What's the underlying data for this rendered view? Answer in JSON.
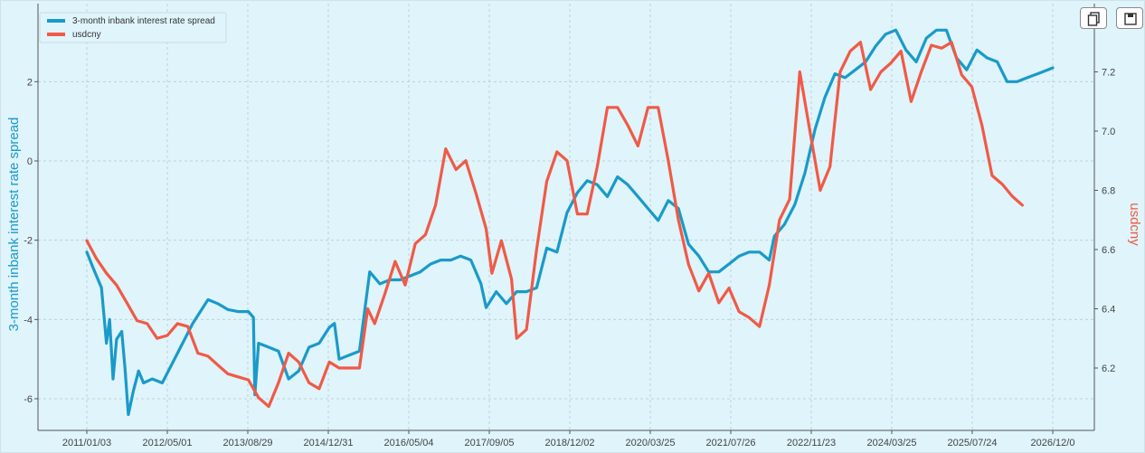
{
  "toolbar": {
    "copy_icon": "copy-icon",
    "save_icon": "save-icon"
  },
  "chart_data": {
    "type": "line",
    "x_tick_labels": [
      "2011/01/03",
      "2012/05/01",
      "2013/08/29",
      "2014/12/31",
      "2016/05/04",
      "2017/09/05",
      "2018/12/02",
      "2020/03/25",
      "2021/07/26",
      "2022/11/23",
      "2024/03/25",
      "2025/07/24",
      "2026/12/0"
    ],
    "left_axis": {
      "label": "3-month inbank interest rate spread",
      "color": "#1a9ac9",
      "ylim": [
        -7.0,
        4.0
      ],
      "ticks": [
        2,
        0,
        -2,
        -4,
        -6
      ],
      "tick_labels": [
        "2",
        "0",
        "-2",
        "-4",
        "-6"
      ]
    },
    "right_axis": {
      "label": "usdcny",
      "color": "#f05a46",
      "ylim": [
        6.0,
        7.4
      ],
      "ticks": [
        7.2,
        7.0,
        6.8,
        6.6,
        6.4,
        6.2
      ],
      "tick_labels": [
        "7.2",
        "7.0",
        "6.8",
        "6.6",
        "6.4",
        "6.2"
      ]
    },
    "grid": true,
    "legend_position": "top-left",
    "series": [
      {
        "name": "3-month inbank interest rate spread",
        "axis": "left",
        "color": "#1a9ac9",
        "points": [
          [
            "2011/01/03",
            -2.3
          ],
          [
            "2011/02/10",
            -2.7
          ],
          [
            "2011/04/01",
            -3.2
          ],
          [
            "2011/05/01",
            -4.6
          ],
          [
            "2011/05/20",
            -4.0
          ],
          [
            "2011/06/10",
            -5.5
          ],
          [
            "2011/07/01",
            -4.5
          ],
          [
            "2011/08/01",
            -4.3
          ],
          [
            "2011/08/20",
            -5.2
          ],
          [
            "2011/09/10",
            -6.4
          ],
          [
            "2011/10/10",
            -5.8
          ],
          [
            "2011/11/10",
            -5.3
          ],
          [
            "2011/12/10",
            -5.6
          ],
          [
            "2012/02/01",
            -5.5
          ],
          [
            "2012/04/01",
            -5.6
          ],
          [
            "2012/06/01",
            -5.1
          ],
          [
            "2012/08/01",
            -4.6
          ],
          [
            "2012/10/01",
            -4.1
          ],
          [
            "2012/12/01",
            -3.7
          ],
          [
            "2013/01/01",
            -3.5
          ],
          [
            "2013/03/01",
            -3.6
          ],
          [
            "2013/05/01",
            -3.75
          ],
          [
            "2013/07/01",
            -3.8
          ],
          [
            "2013/09/01",
            -3.8
          ],
          [
            "2013/10/01",
            -3.95
          ],
          [
            "2013/10/10",
            -5.9
          ],
          [
            "2013/11/01",
            -4.6
          ],
          [
            "2014/01/01",
            -4.7
          ],
          [
            "2014/03/01",
            -4.8
          ],
          [
            "2014/05/01",
            -5.5
          ],
          [
            "2014/07/01",
            -5.3
          ],
          [
            "2014/09/01",
            -4.7
          ],
          [
            "2014/11/01",
            -4.6
          ],
          [
            "2015/01/01",
            -4.2
          ],
          [
            "2015/02/01",
            -4.1
          ],
          [
            "2015/03/01",
            -5.0
          ],
          [
            "2015/05/01",
            -4.9
          ],
          [
            "2015/07/01",
            -4.8
          ],
          [
            "2015/09/01",
            -2.8
          ],
          [
            "2015/11/01",
            -3.1
          ],
          [
            "2016/01/01",
            -3.0
          ],
          [
            "2016/03/01",
            -3.0
          ],
          [
            "2016/05/01",
            -2.9
          ],
          [
            "2016/07/01",
            -2.8
          ],
          [
            "2016/09/01",
            -2.6
          ],
          [
            "2016/11/01",
            -2.5
          ],
          [
            "2017/01/01",
            -2.5
          ],
          [
            "2017/03/01",
            -2.4
          ],
          [
            "2017/05/01",
            -2.5
          ],
          [
            "2017/07/01",
            -3.1
          ],
          [
            "2017/08/01",
            -3.7
          ],
          [
            "2017/10/01",
            -3.3
          ],
          [
            "2017/12/01",
            -3.6
          ],
          [
            "2018/02/01",
            -3.3
          ],
          [
            "2018/04/01",
            -3.3
          ],
          [
            "2018/06/01",
            -3.2
          ],
          [
            "2018/08/01",
            -2.2
          ],
          [
            "2018/10/01",
            -2.3
          ],
          [
            "2018/12/01",
            -1.3
          ],
          [
            "2019/02/01",
            -0.8
          ],
          [
            "2019/04/01",
            -0.5
          ],
          [
            "2019/06/01",
            -0.6
          ],
          [
            "2019/08/01",
            -0.9
          ],
          [
            "2019/10/01",
            -0.4
          ],
          [
            "2019/12/01",
            -0.6
          ],
          [
            "2020/02/01",
            -0.9
          ],
          [
            "2020/04/01",
            -1.2
          ],
          [
            "2020/06/01",
            -1.5
          ],
          [
            "2020/08/01",
            -1.0
          ],
          [
            "2020/10/01",
            -1.2
          ],
          [
            "2020/12/01",
            -2.1
          ],
          [
            "2021/02/01",
            -2.4
          ],
          [
            "2021/04/01",
            -2.8
          ],
          [
            "2021/06/01",
            -2.8
          ],
          [
            "2021/08/01",
            -2.6
          ],
          [
            "2021/10/01",
            -2.4
          ],
          [
            "2021/12/01",
            -2.3
          ],
          [
            "2022/02/01",
            -2.3
          ],
          [
            "2022/04/01",
            -2.5
          ],
          [
            "2022/05/01",
            -1.9
          ],
          [
            "2022/07/01",
            -1.6
          ],
          [
            "2022/09/01",
            -1.1
          ],
          [
            "2022/11/01",
            -0.3
          ],
          [
            "2023/01/01",
            0.8
          ],
          [
            "2023/03/01",
            1.6
          ],
          [
            "2023/05/01",
            2.2
          ],
          [
            "2023/07/01",
            2.1
          ],
          [
            "2023/09/01",
            2.3
          ],
          [
            "2023/11/01",
            2.5
          ],
          [
            "2024/01/01",
            2.9
          ],
          [
            "2024/03/01",
            3.2
          ],
          [
            "2024/05/01",
            3.3
          ],
          [
            "2024/07/01",
            2.8
          ],
          [
            "2024/09/01",
            2.5
          ],
          [
            "2024/11/01",
            3.1
          ],
          [
            "2025/01/01",
            3.3
          ],
          [
            "2025/03/01",
            3.3
          ],
          [
            "2025/05/01",
            2.6
          ],
          [
            "2025/07/01",
            2.3
          ],
          [
            "2025/09/01",
            2.8
          ],
          [
            "2025/11/01",
            2.6
          ],
          [
            "2026/01/01",
            2.5
          ],
          [
            "2026/03/01",
            2.0
          ],
          [
            "2026/05/01",
            2.0
          ],
          [
            "2026/07/01",
            2.1
          ],
          [
            "2026/09/01",
            2.2
          ],
          [
            "2026/11/01",
            2.3
          ],
          [
            "2026/12/01",
            2.35
          ]
        ]
      },
      {
        "name": "usdcny",
        "axis": "right",
        "color": "#f05a46",
        "points": [
          [
            "2011/01/03",
            6.63
          ],
          [
            "2011/03/01",
            6.57
          ],
          [
            "2011/05/01",
            6.52
          ],
          [
            "2011/07/01",
            6.48
          ],
          [
            "2011/09/01",
            6.42
          ],
          [
            "2011/11/01",
            6.36
          ],
          [
            "2012/01/01",
            6.35
          ],
          [
            "2012/03/01",
            6.3
          ],
          [
            "2012/05/01",
            6.31
          ],
          [
            "2012/07/01",
            6.35
          ],
          [
            "2012/09/01",
            6.34
          ],
          [
            "2012/11/01",
            6.25
          ],
          [
            "2013/01/01",
            6.24
          ],
          [
            "2013/03/01",
            6.21
          ],
          [
            "2013/05/01",
            6.18
          ],
          [
            "2013/07/01",
            6.17
          ],
          [
            "2013/09/01",
            6.16
          ],
          [
            "2013/11/01",
            6.1
          ],
          [
            "2014/01/01",
            6.07
          ],
          [
            "2014/03/01",
            6.15
          ],
          [
            "2014/05/01",
            6.25
          ],
          [
            "2014/07/01",
            6.22
          ],
          [
            "2014/09/01",
            6.15
          ],
          [
            "2014/11/01",
            6.13
          ],
          [
            "2015/01/01",
            6.22
          ],
          [
            "2015/03/01",
            6.2
          ],
          [
            "2015/05/01",
            6.2
          ],
          [
            "2015/07/01",
            6.2
          ],
          [
            "2015/08/20",
            6.4
          ],
          [
            "2015/10/01",
            6.35
          ],
          [
            "2015/12/01",
            6.45
          ],
          [
            "2016/02/01",
            6.56
          ],
          [
            "2016/04/01",
            6.48
          ],
          [
            "2016/06/01",
            6.62
          ],
          [
            "2016/08/01",
            6.65
          ],
          [
            "2016/10/01",
            6.75
          ],
          [
            "2016/12/01",
            6.94
          ],
          [
            "2017/02/01",
            6.87
          ],
          [
            "2017/04/01",
            6.9
          ],
          [
            "2017/06/01",
            6.79
          ],
          [
            "2017/08/01",
            6.67
          ],
          [
            "2017/09/05",
            6.52
          ],
          [
            "2017/11/01",
            6.63
          ],
          [
            "2018/01/01",
            6.5
          ],
          [
            "2018/02/01",
            6.3
          ],
          [
            "2018/04/01",
            6.33
          ],
          [
            "2018/06/01",
            6.6
          ],
          [
            "2018/08/01",
            6.83
          ],
          [
            "2018/10/01",
            6.93
          ],
          [
            "2018/12/01",
            6.9
          ],
          [
            "2019/02/01",
            6.72
          ],
          [
            "2019/04/01",
            6.72
          ],
          [
            "2019/06/01",
            6.88
          ],
          [
            "2019/08/01",
            7.08
          ],
          [
            "2019/10/01",
            7.08
          ],
          [
            "2019/12/01",
            7.02
          ],
          [
            "2020/02/01",
            6.95
          ],
          [
            "2020/04/01",
            7.08
          ],
          [
            "2020/06/01",
            7.08
          ],
          [
            "2020/08/01",
            6.9
          ],
          [
            "2020/10/01",
            6.7
          ],
          [
            "2020/12/01",
            6.55
          ],
          [
            "2021/02/01",
            6.46
          ],
          [
            "2021/04/01",
            6.52
          ],
          [
            "2021/06/01",
            6.42
          ],
          [
            "2021/08/01",
            6.47
          ],
          [
            "2021/10/01",
            6.39
          ],
          [
            "2021/12/01",
            6.37
          ],
          [
            "2022/02/01",
            6.34
          ],
          [
            "2022/04/01",
            6.48
          ],
          [
            "2022/06/01",
            6.7
          ],
          [
            "2022/08/01",
            6.77
          ],
          [
            "2022/10/01",
            7.2
          ],
          [
            "2022/12/01",
            7.0
          ],
          [
            "2023/02/01",
            6.8
          ],
          [
            "2023/04/01",
            6.88
          ],
          [
            "2023/06/01",
            7.2
          ],
          [
            "2023/08/01",
            7.27
          ],
          [
            "2023/10/01",
            7.3
          ],
          [
            "2023/12/01",
            7.14
          ],
          [
            "2024/02/01",
            7.2
          ],
          [
            "2024/04/01",
            7.23
          ],
          [
            "2024/06/01",
            7.27
          ],
          [
            "2024/08/01",
            7.1
          ],
          [
            "2024/10/01",
            7.2
          ],
          [
            "2024/12/01",
            7.29
          ],
          [
            "2025/02/01",
            7.28
          ],
          [
            "2025/04/01",
            7.3
          ],
          [
            "2025/06/01",
            7.19
          ],
          [
            "2025/08/01",
            7.15
          ],
          [
            "2025/10/01",
            7.02
          ],
          [
            "2025/12/01",
            6.85
          ],
          [
            "2026/02/01",
            6.82
          ],
          [
            "2026/04/01",
            6.78
          ],
          [
            "2026/06/01",
            6.75
          ]
        ]
      }
    ]
  }
}
